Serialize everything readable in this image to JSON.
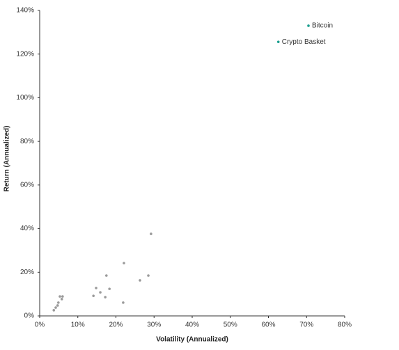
{
  "chart_data": {
    "type": "scatter",
    "x_label": "Volatility (Annualized)",
    "y_label": "Return (Annualized)",
    "xlim": [
      0,
      80
    ],
    "ylim": [
      0,
      140
    ],
    "xticks": [
      {
        "value": 0,
        "label": "0%"
      },
      {
        "value": 10,
        "label": "10%"
      },
      {
        "value": 20,
        "label": "20%"
      },
      {
        "value": 30,
        "label": "30%"
      },
      {
        "value": 40,
        "label": "40%"
      },
      {
        "value": 50,
        "label": "50%"
      },
      {
        "value": 60,
        "label": "60%"
      },
      {
        "value": 70,
        "label": "70%"
      },
      {
        "value": 80,
        "label": "80%"
      }
    ],
    "yticks": [
      {
        "value": 0,
        "label": "0%"
      },
      {
        "value": 20,
        "label": "20%"
      },
      {
        "value": 40,
        "label": "40%"
      },
      {
        "value": 60,
        "label": "60%"
      },
      {
        "value": 80,
        "label": "80%"
      },
      {
        "value": 100,
        "label": "100%"
      },
      {
        "value": 120,
        "label": "120%"
      },
      {
        "value": 140,
        "label": "140%"
      }
    ],
    "series": [
      {
        "color": "#9a9a9a",
        "x": [
          3.7,
          4.2,
          4.7,
          4.9,
          5.3,
          6.0,
          5.8,
          14.1,
          14.8,
          15.9,
          17.2,
          17.5,
          18.3,
          21.9,
          22.1,
          26.3,
          28.5,
          29.2
        ],
        "values": [
          2.6,
          3.8,
          4.8,
          6.1,
          8.9,
          8.9,
          7.7,
          9.2,
          12.8,
          10.8,
          8.6,
          18.5,
          12.4,
          6.1,
          24.2,
          16.3,
          18.5,
          37.6
        ]
      },
      {
        "color": "#1a9e8f",
        "x": [
          70.5,
          62.6
        ],
        "values": [
          133,
          125.6
        ],
        "labels": [
          "Bitcoin",
          "Crypto Basket"
        ]
      }
    ]
  }
}
